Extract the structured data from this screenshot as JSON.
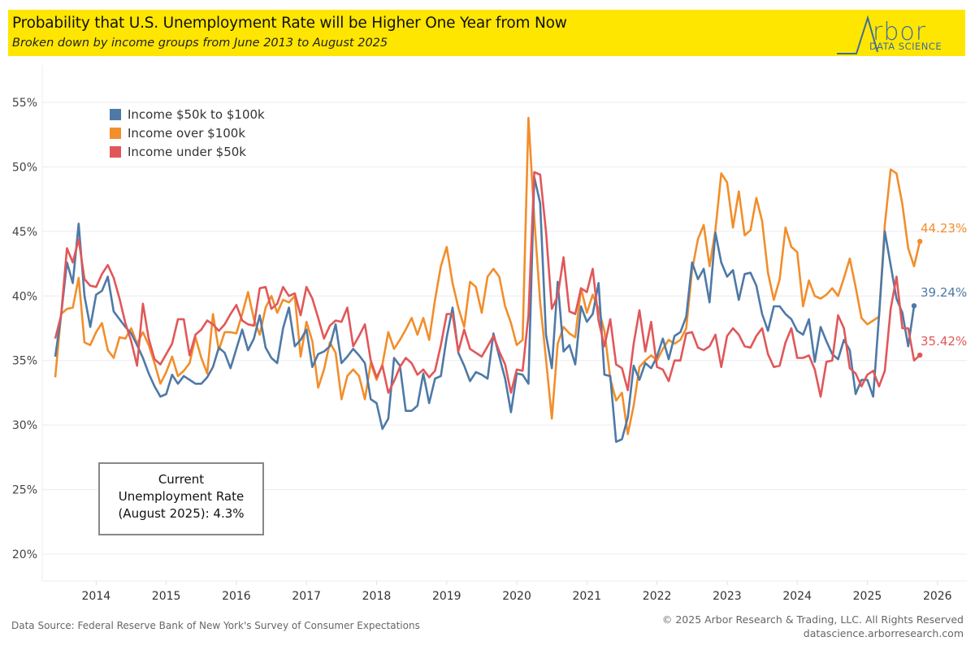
{
  "header": {
    "title": "Probability that U.S. Unemployment Rate will be Higher One Year from Now",
    "subtitle": "Broken down by income groups from June 2013 to August 2025",
    "logo_text": "rbor",
    "logo_sub": "DATA SCIENCE",
    "background": "#ffe600"
  },
  "info_box": {
    "line1": "Current",
    "line2": "Unemployment Rate",
    "line3": "(August 2025): 4.3%"
  },
  "footer": {
    "source": "Data Source: Federal Reserve Bank of New York's Survey of Consumer Expectations",
    "copyright": "© 2025 Arbor Research & Trading, LLC. All Rights Reserved",
    "url": "datascience.arborresearch.com"
  },
  "end_labels": {
    "over_100k": "44.23%",
    "mid": "39.24%",
    "under_50k": "35.42%"
  },
  "chart_data": {
    "type": "line",
    "title": "Probability that U.S. Unemployment Rate will be Higher One Year from Now",
    "subtitle": "Broken down by income groups from June 2013 to August 2025",
    "xlabel": "",
    "ylabel": "",
    "x_start": "2013-06",
    "x_end": "2025-08",
    "x_ticks": [
      "2014",
      "2015",
      "2016",
      "2017",
      "2018",
      "2019",
      "2020",
      "2021",
      "2022",
      "2023",
      "2024",
      "2025",
      "2026"
    ],
    "y_ticks": [
      "20%",
      "25%",
      "30%",
      "35%",
      "40%",
      "45%",
      "50%",
      "55%"
    ],
    "ylim": [
      18.5,
      57
    ],
    "grid": true,
    "legend_position": "top-left",
    "series": [
      {
        "name": "Income $50k to $100k",
        "color": "#4e79a7",
        "values": [
          35.3,
          38.5,
          42.6,
          41.0,
          45.6,
          40.0,
          37.6,
          40.1,
          40.4,
          41.5,
          38.8,
          38.2,
          37.6,
          37.1,
          36.2,
          35.2,
          34.0,
          33.0,
          32.2,
          32.4,
          33.9,
          33.2,
          33.8,
          33.5,
          33.2,
          33.2,
          33.7,
          34.5,
          36.0,
          35.6,
          34.4,
          35.9,
          37.4,
          35.8,
          36.7,
          38.5,
          36.0,
          35.2,
          34.8,
          37.5,
          39.1,
          36.1,
          36.6,
          37.4,
          34.5,
          35.5,
          35.7,
          36.1,
          37.8,
          34.8,
          35.3,
          35.9,
          35.4,
          34.8,
          32.0,
          31.7,
          29.7,
          30.5,
          35.2,
          34.6,
          31.1,
          31.1,
          31.5,
          34.0,
          31.7,
          33.6,
          33.8,
          36.8,
          39.1,
          35.6,
          34.6,
          33.4,
          34.1,
          33.9,
          33.6,
          37.1,
          35.3,
          33.6,
          31.0,
          34.0,
          33.9,
          33.2,
          49.2,
          47.2,
          37.0,
          34.4,
          41.1,
          35.7,
          36.2,
          34.7,
          39.2,
          38.0,
          38.6,
          41.0,
          33.9,
          33.8,
          28.7,
          28.9,
          30.6,
          34.6,
          33.5,
          34.8,
          34.4,
          35.3,
          36.7,
          35.1,
          36.9,
          37.2,
          38.4,
          42.6,
          41.3,
          42.1,
          39.5,
          44.9,
          42.6,
          41.5,
          42.0,
          39.7,
          41.7,
          41.8,
          40.8,
          38.6,
          37.3,
          39.2,
          39.2,
          38.6,
          38.2,
          37.3,
          37.0,
          38.2,
          34.9,
          37.6,
          36.5,
          35.5,
          35.1,
          36.6,
          35.8,
          32.4,
          33.5,
          33.5,
          32.2,
          38.5,
          45.0,
          42.4,
          39.8,
          38.7,
          36.1,
          39.24
        ]
      },
      {
        "name": "Income over $100k",
        "color": "#f28e2b",
        "values": [
          33.7,
          38.6,
          39.0,
          39.1,
          41.4,
          36.4,
          36.2,
          37.2,
          37.9,
          35.8,
          35.2,
          36.8,
          36.7,
          37.5,
          36.3,
          37.2,
          36.2,
          34.8,
          33.2,
          34.1,
          35.3,
          33.8,
          34.2,
          34.8,
          36.8,
          35.2,
          34.0,
          38.6,
          35.8,
          37.2,
          37.2,
          37.1,
          38.6,
          40.3,
          38.2,
          37.0,
          39.1,
          40.0,
          38.7,
          39.7,
          39.5,
          40.0,
          35.3,
          38.0,
          36.5,
          32.9,
          34.3,
          36.4,
          35.6,
          32.0,
          33.8,
          34.3,
          33.8,
          32.0,
          34.8,
          33.5,
          34.7,
          37.2,
          35.9,
          36.6,
          37.4,
          38.3,
          37.0,
          38.3,
          36.6,
          39.7,
          42.3,
          43.8,
          41.0,
          39.1,
          37.6,
          41.1,
          40.7,
          38.7,
          41.5,
          42.1,
          41.5,
          39.2,
          37.9,
          36.2,
          36.6,
          53.8,
          46.0,
          39.5,
          35.1,
          30.5,
          36.3,
          37.6,
          37.1,
          36.8,
          40.6,
          38.7,
          40.1,
          39.0,
          37.3,
          33.6,
          31.9,
          32.5,
          29.3,
          31.5,
          34.5,
          35.0,
          35.4,
          35.0,
          35.9,
          36.6,
          36.3,
          36.6,
          37.5,
          42.0,
          44.4,
          45.5,
          42.3,
          45.1,
          49.5,
          48.8,
          45.3,
          48.1,
          44.7,
          45.1,
          47.6,
          45.8,
          41.8,
          39.7,
          41.3,
          45.3,
          43.8,
          43.4,
          39.2,
          41.2,
          40.0,
          39.8,
          40.1,
          40.6,
          40.0,
          41.4,
          42.9,
          40.7,
          38.3,
          37.8,
          38.1,
          38.4,
          45.5,
          49.8,
          49.5,
          47.1,
          43.7,
          42.3,
          44.23
        ]
      },
      {
        "name": "Income under $50k",
        "color": "#e15759",
        "values": [
          36.7,
          38.5,
          43.7,
          42.6,
          44.4,
          41.3,
          40.8,
          40.7,
          41.7,
          42.4,
          41.4,
          39.8,
          37.9,
          36.5,
          34.6,
          39.4,
          36.7,
          35.1,
          34.7,
          35.5,
          36.3,
          38.2,
          38.2,
          35.4,
          37.0,
          37.4,
          38.1,
          37.8,
          37.3,
          37.8,
          38.6,
          39.3,
          38.1,
          37.8,
          37.7,
          40.6,
          40.7,
          39.0,
          39.4,
          40.7,
          40.0,
          40.2,
          38.5,
          40.7,
          39.8,
          38.3,
          36.7,
          37.7,
          38.1,
          38.0,
          39.1,
          36.1,
          36.9,
          37.8,
          35.0,
          33.7,
          34.6,
          32.5,
          33.4,
          34.5,
          35.2,
          34.8,
          33.9,
          34.3,
          33.7,
          34.2,
          36.2,
          38.6,
          38.6,
          35.7,
          37.4,
          35.9,
          35.6,
          35.3,
          36.1,
          36.9,
          35.7,
          34.7,
          32.5,
          34.3,
          34.2,
          38.5,
          49.6,
          49.4,
          45.0,
          39.0,
          40.0,
          43.0,
          38.8,
          38.6,
          40.6,
          40.3,
          42.1,
          38.1,
          36.1,
          38.2,
          34.7,
          34.4,
          32.7,
          36.3,
          38.9,
          35.7,
          38.0,
          34.5,
          34.3,
          33.4,
          35.0,
          35.0,
          37.1,
          37.2,
          36.0,
          35.8,
          36.1,
          37.0,
          34.5,
          36.9,
          37.5,
          37.0,
          36.1,
          36.0,
          36.9,
          37.5,
          35.5,
          34.5,
          34.6,
          36.4,
          37.5,
          35.2,
          35.2,
          35.4,
          34.3,
          32.2,
          34.9,
          35.0,
          38.5,
          37.5,
          34.4,
          34.0,
          33.0,
          33.9,
          34.2,
          33.0,
          34.2,
          39.0,
          41.5,
          37.5,
          37.5,
          35.0,
          35.42
        ]
      }
    ]
  }
}
